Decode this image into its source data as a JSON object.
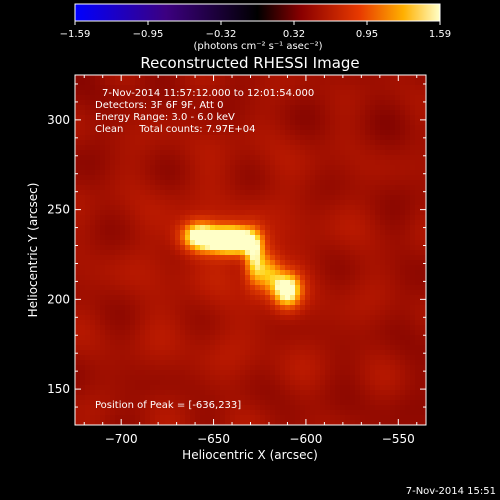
{
  "colorbar": {
    "tick_labels": [
      "−1.59",
      "−0.95",
      "−0.32",
      "0.32",
      "0.95",
      "1.59"
    ],
    "unit_label": "(photons cm⁻² s⁻¹ asec⁻²)",
    "range": [
      -1.59,
      1.59
    ]
  },
  "chart_data": {
    "type": "heatmap",
    "title": "Reconstructed RHESSI Image",
    "xlabel": "Heliocentric X (arcsec)",
    "ylabel": "Heliocentric Y (arcsec)",
    "xlim": [
      -725,
      -535
    ],
    "ylim": [
      130,
      325
    ],
    "x_ticks": [
      -700,
      -650,
      -600,
      -550
    ],
    "x_tick_labels": [
      "−700",
      "−650",
      "−600",
      "−550"
    ],
    "y_ticks": [
      150,
      200,
      250,
      300
    ],
    "y_tick_labels": [
      "150",
      "200",
      "250",
      "300"
    ],
    "info_lines": [
      "7-Nov-2014 11:57:12.000 to 12:01:54.000",
      "Detectors: 3F 6F 9F, Att 0",
      "Energy Range: 3.0 - 6.0 keV",
      "Clean     Total counts: 7.97E+04"
    ],
    "peak_label": "Position of Peak = [-636,233]",
    "peak_position": [
      -636,
      233
    ],
    "sources": [
      {
        "x": -640,
        "y": 233,
        "peak": 1.59
      },
      {
        "x": -658,
        "y": 235,
        "peak": 1.3
      },
      {
        "x": -610,
        "y": 205,
        "peak": 1.25
      }
    ],
    "background_level": 0.55
  },
  "footer": {
    "timestamp": "7-Nov-2014 15:51"
  }
}
